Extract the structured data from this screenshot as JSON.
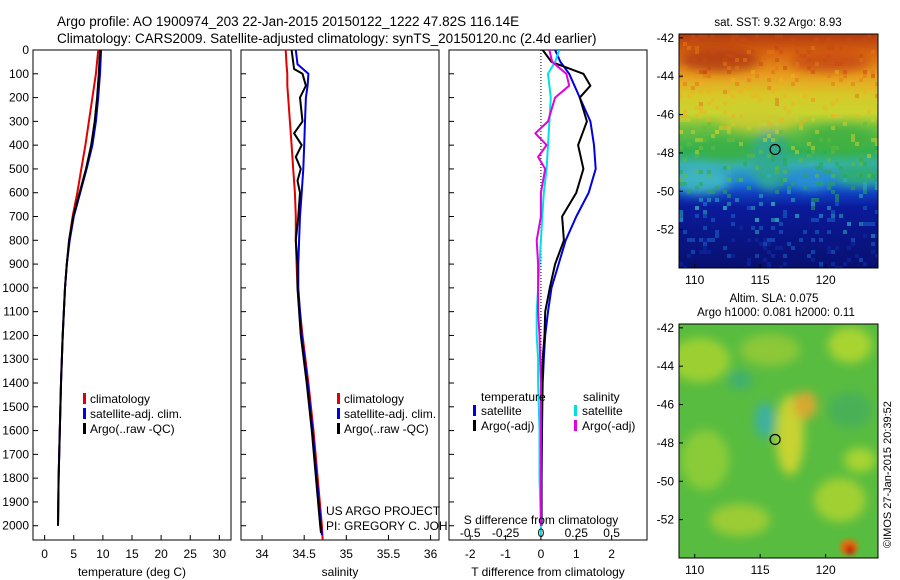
{
  "header": {
    "line1": "Argo profile: AO 1900974_203 22-Jan-2015 20150122_1222 47.82S 116.14E",
    "line2": "Climatology: CARS2009. Satellite-adjusted climatology: synTS_20150120.nc (2.4d earlier)"
  },
  "credit": {
    "line1": "US ARGO PROJECT",
    "line2": "PI: GREGORY C. JOHNSON"
  },
  "stamp": "©IMOS 27-Jan-2015 20:39:52",
  "colors": {
    "climatology": "#e00000",
    "satellite": "#0000e0",
    "argo": "#000000",
    "sat_salinity": "#00e0e0",
    "argo_salinity": "#e000e0"
  },
  "chart_data": [
    {
      "id": "temperature",
      "type": "line",
      "xlabel": "temperature (deg C)",
      "ylabel": "",
      "xlim": [
        -2,
        32
      ],
      "ylim": [
        2060,
        0
      ],
      "xticks": [
        0,
        5,
        10,
        15,
        20,
        25,
        30
      ],
      "yticks": [
        0,
        100,
        200,
        300,
        400,
        500,
        600,
        700,
        800,
        900,
        1000,
        1100,
        1200,
        1300,
        1400,
        1500,
        1600,
        1700,
        1800,
        1900,
        2000
      ],
      "legend": {
        "placement": "lower-right",
        "entries": [
          "climatology",
          "satellite-adj. clim.",
          "Argo(..raw -QC)"
        ]
      },
      "series": [
        {
          "name": "climatology",
          "color": "#e00000",
          "depth": [
            0,
            100,
            200,
            300,
            400,
            500,
            600,
            700,
            800,
            900,
            1000,
            1200,
            1400,
            1600,
            1800,
            2000
          ],
          "values": [
            9.2,
            8.8,
            8.2,
            7.6,
            7.0,
            6.3,
            5.6,
            4.8,
            4.2,
            3.8,
            3.5,
            3.1,
            2.8,
            2.6,
            2.4,
            2.3
          ]
        },
        {
          "name": "satellite-adj. clim.",
          "color": "#0000e0",
          "depth": [
            0,
            100,
            200,
            300,
            400,
            500,
            600,
            700,
            800,
            900,
            1000,
            1200,
            1400,
            1600,
            1800,
            2000
          ],
          "values": [
            9.7,
            9.5,
            9.2,
            8.8,
            8.2,
            7.2,
            6.1,
            5.0,
            4.3,
            3.8,
            3.5,
            3.1,
            2.8,
            2.6,
            2.4,
            2.3
          ]
        },
        {
          "name": "Argo(..raw -QC)",
          "color": "#000000",
          "depth": [
            0,
            100,
            200,
            300,
            400,
            500,
            600,
            700,
            800,
            900,
            1000,
            1200,
            1400,
            1600,
            1800,
            2000
          ],
          "values": [
            9.5,
            9.3,
            9.0,
            8.6,
            8.0,
            7.1,
            6.0,
            4.9,
            4.2,
            3.8,
            3.5,
            3.1,
            2.8,
            2.6,
            2.4,
            2.3
          ]
        }
      ]
    },
    {
      "id": "salinity",
      "type": "line",
      "xlabel": "salinity",
      "ylabel": "",
      "xlim": [
        33.75,
        36.1
      ],
      "ylim": [
        2060,
        0
      ],
      "xticks": [
        34,
        34.5,
        35,
        35.5,
        36
      ],
      "legend": {
        "placement": "lower-right",
        "entries": [
          "climatology",
          "satellite-adj. clim.",
          "Argo(..raw -QC)"
        ]
      },
      "series": [
        {
          "name": "climatology",
          "color": "#e00000",
          "depth": [
            0,
            60,
            100,
            150,
            200,
            300,
            400,
            500,
            600,
            700,
            800,
            900,
            1000,
            1200,
            1400,
            1600,
            1800,
            2000,
            2060
          ],
          "values": [
            34.28,
            34.29,
            34.3,
            34.3,
            34.31,
            34.33,
            34.35,
            34.37,
            34.39,
            34.4,
            34.4,
            34.41,
            34.42,
            34.48,
            34.55,
            34.61,
            34.66,
            34.71,
            34.72
          ]
        },
        {
          "name": "satellite-adj. clim.",
          "color": "#0000e0",
          "depth": [
            0,
            60,
            100,
            150,
            200,
            300,
            400,
            500,
            600,
            700,
            800,
            900,
            1000,
            1200,
            1400,
            1600,
            1800,
            2000,
            2040
          ],
          "values": [
            34.4,
            34.42,
            34.55,
            34.54,
            34.52,
            34.51,
            34.5,
            34.49,
            34.47,
            34.45,
            34.44,
            34.43,
            34.43,
            34.47,
            34.54,
            34.6,
            34.65,
            34.7,
            34.71
          ]
        },
        {
          "name": "Argo(..raw -QC)",
          "color": "#000000",
          "depth": [
            0,
            80,
            100,
            150,
            200,
            300,
            350,
            400,
            450,
            500,
            550,
            600,
            700,
            800,
            900,
            1000,
            1200,
            1400,
            1600,
            1800,
            2000,
            2030
          ],
          "values": [
            34.35,
            34.38,
            34.48,
            34.52,
            34.45,
            34.48,
            34.38,
            34.47,
            34.4,
            34.46,
            34.42,
            34.45,
            34.43,
            34.4,
            34.42,
            34.42,
            34.46,
            34.53,
            34.59,
            34.64,
            34.69,
            34.7
          ]
        }
      ]
    },
    {
      "id": "difference",
      "type": "line",
      "xlabel": "T difference from climatology",
      "ylabel": "",
      "top_label": "S difference from climatology",
      "xlim": [
        -2.6,
        3.0
      ],
      "ylim": [
        2060,
        0
      ],
      "xticks": [
        -2,
        -1,
        0,
        1,
        2
      ],
      "top_ticks": [
        "-0.5",
        "-0.25",
        "0",
        "0.25",
        "0.5"
      ],
      "legend": {
        "placement": "lower",
        "groups": [
          "temperature",
          "salinity"
        ],
        "entries": [
          "satellite",
          "Argo(-adj)",
          "satellite",
          "Argo(-adj)"
        ]
      },
      "series": [
        {
          "name": "temperature satellite",
          "color": "#0000e0",
          "depth": [
            0,
            50,
            100,
            200,
            300,
            400,
            500,
            550,
            600,
            700,
            800,
            900,
            1000,
            1100,
            1200,
            1300,
            1400,
            1600,
            1800,
            2000
          ],
          "values": [
            0.4,
            0.55,
            0.8,
            1.1,
            1.4,
            1.5,
            1.55,
            1.45,
            1.35,
            1.0,
            0.7,
            0.5,
            0.3,
            0.2,
            0.12,
            0.08,
            0.05,
            0.03,
            0.02,
            0.02
          ]
        },
        {
          "name": "temperature Argo(-adj)",
          "color": "#000000",
          "depth": [
            0,
            50,
            100,
            150,
            200,
            300,
            400,
            500,
            600,
            700,
            800,
            900,
            1000,
            1100,
            1200,
            1300,
            1400,
            1600,
            1800,
            2000
          ],
          "values": [
            0.05,
            0.3,
            1.2,
            1.4,
            1.1,
            1.3,
            1.05,
            1.2,
            1.0,
            0.6,
            0.65,
            0.4,
            0.25,
            0.12,
            0.1,
            0.05,
            0.04,
            0.02,
            0.01,
            0.01
          ]
        },
        {
          "name": "salinity satellite",
          "color": "#00e0e0",
          "depth": [
            0,
            50,
            100,
            200,
            300,
            400,
            500,
            600,
            700,
            800,
            900,
            1000,
            1100,
            1200,
            1300,
            1400,
            1600,
            1800,
            2000,
            2040
          ],
          "values": [
            0.13,
            0.1,
            0.05,
            0.07,
            0.06,
            0.05,
            0.04,
            0.02,
            0.01,
            0.0,
            -0.01,
            -0.02,
            -0.03,
            -0.03,
            -0.02,
            -0.02,
            -0.01,
            -0.01,
            0.0,
            0.0
          ]
        },
        {
          "name": "salinity Argo(-adj)",
          "color": "#e000e0",
          "depth": [
            0,
            50,
            100,
            150,
            200,
            300,
            350,
            400,
            450,
            500,
            600,
            700,
            800,
            900,
            1000,
            1100,
            1200,
            1400,
            1600,
            1800,
            2000
          ],
          "values": [
            0.06,
            0.08,
            0.18,
            0.2,
            0.1,
            0.05,
            -0.04,
            0.04,
            -0.02,
            0.03,
            0.0,
            0.0,
            -0.03,
            -0.02,
            -0.02,
            -0.02,
            -0.01,
            0.0,
            0.0,
            0.0,
            0.0
          ]
        }
      ]
    },
    {
      "id": "sst_map",
      "type": "heatmap",
      "title": "sat. SST: 9.32 Argo: 8.93",
      "xlim": [
        108.8,
        124
      ],
      "ylim": [
        -54,
        -41.8
      ],
      "xticks": [
        110,
        115,
        120
      ],
      "yticks": [
        -42,
        -44,
        -46,
        -48,
        -50,
        -52
      ],
      "marker": {
        "lon": 116.14,
        "lat": -47.82
      }
    },
    {
      "id": "sla_map",
      "type": "heatmap",
      "title": "Altim. SLA: 0.075",
      "subtitle": "Argo h1000: 0.081 h2000: 0.11",
      "xlim": [
        108.8,
        124
      ],
      "ylim": [
        -54,
        -41.8
      ],
      "xticks": [
        110,
        115,
        120
      ],
      "yticks": [
        -42,
        -44,
        -46,
        -48,
        -50,
        -52
      ],
      "marker": {
        "lon": 116.14,
        "lat": -47.82
      }
    }
  ]
}
